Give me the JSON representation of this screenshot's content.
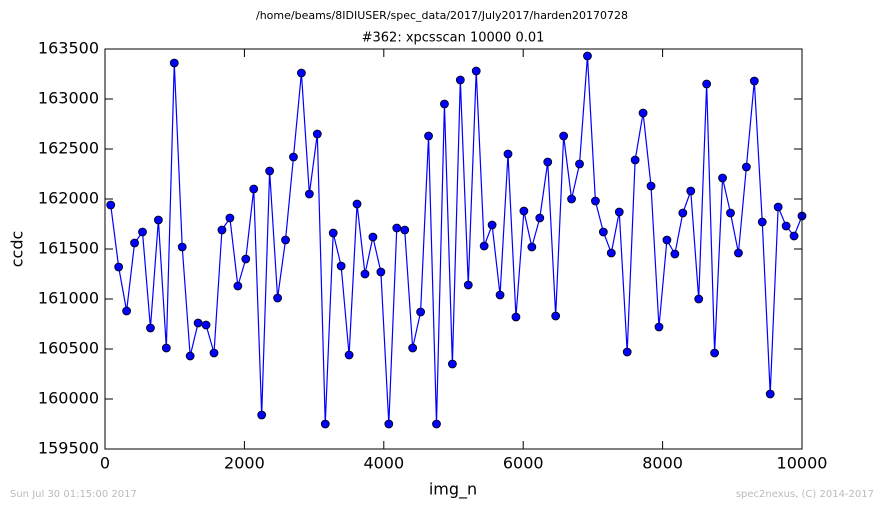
{
  "header": {
    "path": "/home/beams/8IDIUSER/spec_data/2017/July2017/harden20170728"
  },
  "footer": {
    "left": "Sun Jul 30 01:15:00 2017",
    "right": "spec2nexus, (C) 2014-2017"
  },
  "chart_data": {
    "type": "line",
    "title": "#362: xpcsscan 10000 0.01",
    "x_label": "img_n",
    "y_label": "ccdc",
    "xlim": [
      0,
      10000
    ],
    "xticks": [
      0,
      2000,
      4000,
      6000,
      8000,
      10000
    ],
    "ylim": [
      159500,
      163500
    ],
    "yticks": [
      159500,
      160000,
      160500,
      161000,
      161500,
      162000,
      162500,
      163000,
      163500
    ],
    "grid": false,
    "x": [
      82,
      196,
      310,
      424,
      538,
      652,
      766,
      880,
      994,
      1108,
      1222,
      1336,
      1450,
      1564,
      1678,
      1792,
      1906,
      2020,
      2134,
      2248,
      2362,
      2476,
      2590,
      2704,
      2818,
      2932,
      3046,
      3160,
      3274,
      3388,
      3502,
      3616,
      3730,
      3844,
      3958,
      4072,
      4186,
      4300,
      4414,
      4528,
      4642,
      4756,
      4870,
      4984,
      5098,
      5212,
      5326,
      5440,
      5554,
      5668,
      5782,
      5896,
      6010,
      6124,
      6238,
      6352,
      6466,
      6580,
      6694,
      6808,
      6922,
      7036,
      7150,
      7264,
      7378,
      7492,
      7606,
      7720,
      7834,
      7948,
      8062,
      8176,
      8290,
      8404,
      8518,
      8632,
      8746,
      8860,
      8974,
      9088,
      9202,
      9316,
      9430,
      9544,
      9658,
      9772,
      9886,
      10000
    ],
    "series": [
      {
        "name": "ccdc",
        "color": "#0000ff",
        "values": [
          161940,
          161320,
          160880,
          161560,
          161670,
          160710,
          161790,
          160510,
          163360,
          161520,
          160430,
          160760,
          160740,
          160460,
          161690,
          161810,
          161130,
          161400,
          162100,
          159840,
          162280,
          161010,
          161590,
          162420,
          163260,
          162050,
          162650,
          159750,
          161660,
          161330,
          160440,
          161950,
          161250,
          161620,
          161270,
          159750,
          161710,
          161690,
          160510,
          160870,
          162630,
          159750,
          162950,
          160350,
          163190,
          161140,
          163280,
          161530,
          161740,
          161040,
          162450,
          160820,
          161880,
          161520,
          161810,
          162370,
          160830,
          162630,
          162000,
          162350,
          163430,
          161980,
          161670,
          161460,
          161870,
          160470,
          162390,
          162860,
          162130,
          160720,
          161590,
          161450,
          161860,
          162080,
          161000,
          163150,
          160460,
          162210,
          161860,
          161460,
          162320,
          163180,
          161770,
          160050,
          161920,
          161730,
          161630,
          161830
        ]
      }
    ]
  }
}
